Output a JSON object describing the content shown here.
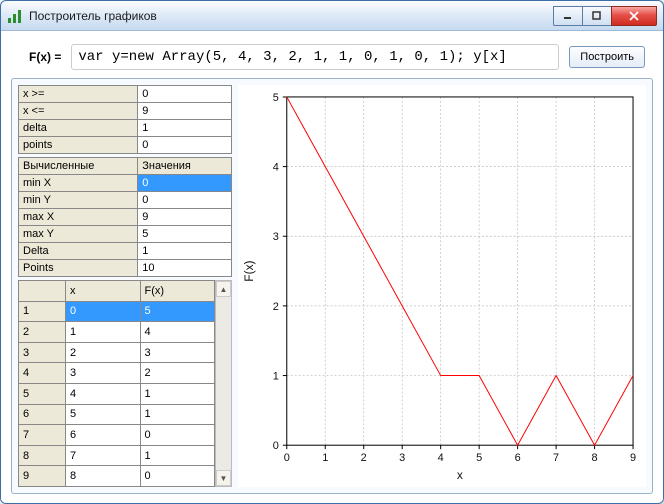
{
  "window": {
    "title": "Построитель графиков"
  },
  "formula": {
    "label": "F(x) =",
    "value": "var y=new Array(5, 4, 3, 2, 1, 1, 0, 1, 0, 1); y[x]",
    "button": "Построить"
  },
  "params": [
    {
      "k": "x >=",
      "v": "0"
    },
    {
      "k": "x <=",
      "v": "9"
    },
    {
      "k": "delta",
      "v": "1"
    },
    {
      "k": "points",
      "v": "0"
    }
  ],
  "computed_header": {
    "left": "Вычисленные",
    "right": "Значения"
  },
  "computed": [
    {
      "k": "min X",
      "v": "0",
      "sel": true
    },
    {
      "k": "min Y",
      "v": "0"
    },
    {
      "k": "max X",
      "v": "9"
    },
    {
      "k": "max Y",
      "v": "5"
    },
    {
      "k": "Delta",
      "v": "1"
    },
    {
      "k": "Points",
      "v": "10"
    }
  ],
  "data_columns": {
    "idx": "",
    "x": "x",
    "fx": "F(x)"
  },
  "data_rows": [
    {
      "i": "1",
      "x": "0",
      "fx": "5",
      "sel": true
    },
    {
      "i": "2",
      "x": "1",
      "fx": "4"
    },
    {
      "i": "3",
      "x": "2",
      "fx": "3"
    },
    {
      "i": "4",
      "x": "3",
      "fx": "2"
    },
    {
      "i": "5",
      "x": "4",
      "fx": "1"
    },
    {
      "i": "6",
      "x": "5",
      "fx": "1"
    },
    {
      "i": "7",
      "x": "6",
      "fx": "0"
    },
    {
      "i": "8",
      "x": "7",
      "fx": "1"
    },
    {
      "i": "9",
      "x": "8",
      "fx": "0"
    }
  ],
  "chart": {
    "type": "line",
    "xlabel": "x",
    "ylabel": "F(x)",
    "xlim": [
      0,
      9
    ],
    "ylim": [
      0,
      5
    ],
    "xtick_step": 1,
    "ytick_step": 1,
    "line_color": "#ff0000",
    "line_width": 1,
    "grid_color": "#bbbbbb",
    "grid_dash": "2,2",
    "axis_color": "#000000",
    "background": "#ffffff",
    "tick_fontsize": 11,
    "label_fontsize": 12,
    "points": [
      {
        "x": 0,
        "y": 5
      },
      {
        "x": 1,
        "y": 4
      },
      {
        "x": 2,
        "y": 3
      },
      {
        "x": 3,
        "y": 2
      },
      {
        "x": 4,
        "y": 1
      },
      {
        "x": 5,
        "y": 1
      },
      {
        "x": 6,
        "y": 0
      },
      {
        "x": 7,
        "y": 1
      },
      {
        "x": 8,
        "y": 0
      },
      {
        "x": 9,
        "y": 1
      }
    ]
  }
}
